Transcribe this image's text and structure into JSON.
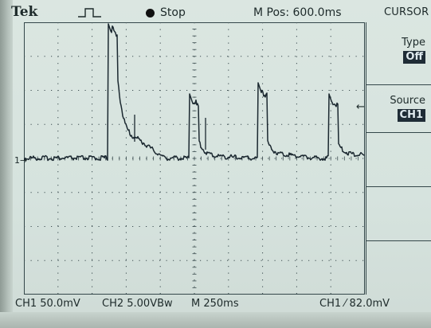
{
  "header": {
    "brand": "Tek",
    "trigger_icon": "pulse-trigger-icon",
    "run_state": "Stop",
    "position_readout": "M Pos: 600.0ms",
    "menu_title": "CURSOR"
  },
  "side_menu": {
    "items": [
      {
        "label": "Type",
        "value": "Off"
      },
      {
        "label": "Source",
        "value": "CH1"
      }
    ]
  },
  "footer": {
    "ch1_scale": "CH1 50.0mV",
    "ch2_scale": "CH2 5.00VBw",
    "timebase": "M 250ms",
    "trigger_readout": "CH1 ⁄ 82.0mV"
  },
  "markers": {
    "ch1_ground": "1→",
    "trigger_level": "←"
  },
  "colors": {
    "trace": "#1b2830",
    "screen": "#d8e4df",
    "grid": "#3c4d50"
  }
}
